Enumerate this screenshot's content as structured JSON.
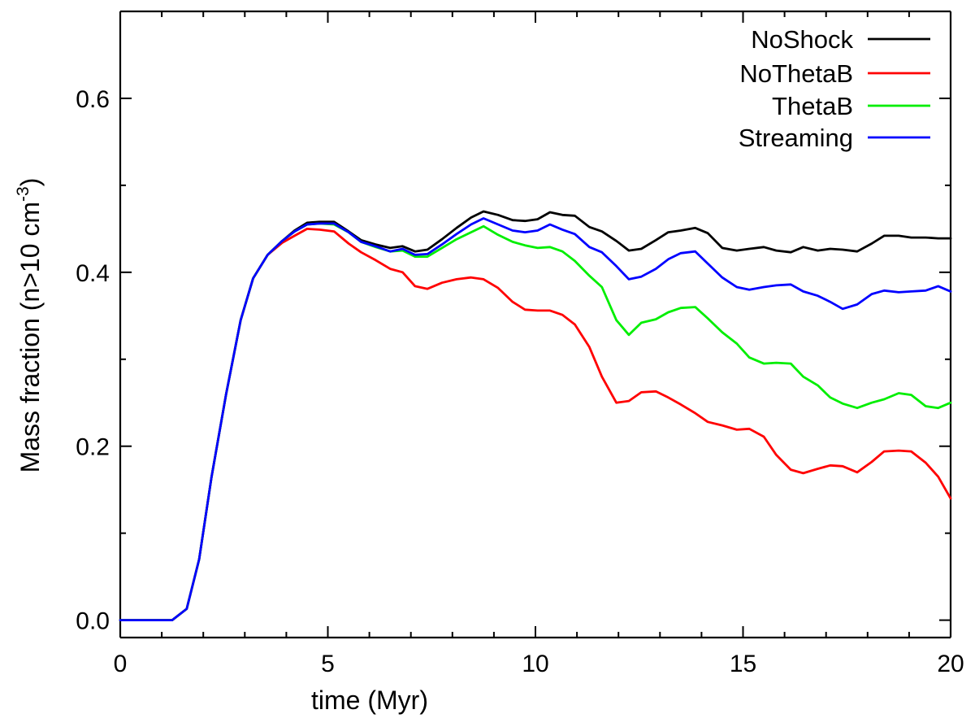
{
  "chart_data": {
    "type": "line",
    "title": "",
    "xlabel": "time (Myr)",
    "ylabel": {
      "prefix": "Mass fraction (n>10 cm",
      "superscript": "-3",
      "suffix": ")"
    },
    "xlim": [
      0,
      20
    ],
    "ylim": [
      -0.02,
      0.7
    ],
    "xticks": [
      0,
      5,
      10,
      15,
      20
    ],
    "xtick_labels": [
      "0",
      "5",
      "10",
      "15",
      "20"
    ],
    "yticks": [
      0.0,
      0.2,
      0.4,
      0.6
    ],
    "ytick_labels": [
      "0.0",
      "0.2",
      "0.4",
      "0.6"
    ],
    "x_minor_step": 1,
    "y_minor_step": 0.1,
    "legend_position": "top-right",
    "series": [
      {
        "name": "NoShock",
        "color": "#000000",
        "x": [
          0,
          0.5,
          1,
          1.25,
          1.6,
          1.9,
          2.2,
          2.55,
          2.9,
          3.2,
          3.55,
          3.9,
          4.2,
          4.5,
          4.8,
          5.15,
          5.5,
          5.8,
          6.15,
          6.5,
          6.8,
          7.1,
          7.4,
          7.75,
          8.1,
          8.45,
          8.75,
          9.1,
          9.45,
          9.75,
          10.05,
          10.35,
          10.65,
          10.95,
          11.3,
          11.6,
          11.95,
          12.25,
          12.55,
          12.9,
          13.2,
          13.5,
          13.85,
          14.15,
          14.5,
          14.85,
          15.15,
          15.5,
          15.8,
          16.15,
          16.45,
          16.8,
          17.1,
          17.4,
          17.75,
          18.1,
          18.4,
          18.75,
          19.05,
          19.4,
          19.7,
          20
        ],
        "values": [
          0,
          0,
          0,
          0,
          0.013,
          0.07,
          0.165,
          0.26,
          0.345,
          0.393,
          0.42,
          0.436,
          0.448,
          0.457,
          0.458,
          0.458,
          0.447,
          0.437,
          0.432,
          0.428,
          0.43,
          0.424,
          0.426,
          0.438,
          0.451,
          0.463,
          0.47,
          0.466,
          0.46,
          0.459,
          0.461,
          0.469,
          0.466,
          0.465,
          0.452,
          0.447,
          0.436,
          0.425,
          0.427,
          0.437,
          0.446,
          0.448,
          0.451,
          0.445,
          0.428,
          0.425,
          0.427,
          0.429,
          0.425,
          0.423,
          0.429,
          0.425,
          0.427,
          0.426,
          0.424,
          0.433,
          0.442,
          0.442,
          0.44,
          0.44,
          0.439,
          0.439
        ]
      },
      {
        "name": "NoThetaB",
        "color": "#ff0000",
        "x": [
          0,
          0.5,
          1,
          1.25,
          1.6,
          1.9,
          2.2,
          2.55,
          2.9,
          3.2,
          3.55,
          3.9,
          4.2,
          4.5,
          4.8,
          5.15,
          5.5,
          5.8,
          6.15,
          6.5,
          6.8,
          7.1,
          7.4,
          7.75,
          8.1,
          8.45,
          8.75,
          9.1,
          9.45,
          9.75,
          10.05,
          10.35,
          10.65,
          10.95,
          11.3,
          11.6,
          11.95,
          12.25,
          12.55,
          12.9,
          13.2,
          13.5,
          13.85,
          14.15,
          14.5,
          14.85,
          15.15,
          15.5,
          15.8,
          16.15,
          16.45,
          16.8,
          17.1,
          17.4,
          17.75,
          18.1,
          18.4,
          18.75,
          19.05,
          19.4,
          19.7,
          20
        ],
        "values": [
          0,
          0,
          0,
          0,
          0.013,
          0.07,
          0.165,
          0.26,
          0.345,
          0.393,
          0.42,
          0.434,
          0.442,
          0.45,
          0.449,
          0.447,
          0.433,
          0.423,
          0.414,
          0.404,
          0.4,
          0.384,
          0.381,
          0.388,
          0.392,
          0.394,
          0.392,
          0.382,
          0.366,
          0.357,
          0.356,
          0.356,
          0.351,
          0.34,
          0.314,
          0.28,
          0.25,
          0.252,
          0.262,
          0.263,
          0.256,
          0.248,
          0.238,
          0.228,
          0.224,
          0.219,
          0.22,
          0.211,
          0.19,
          0.173,
          0.169,
          0.174,
          0.178,
          0.177,
          0.17,
          0.182,
          0.194,
          0.195,
          0.194,
          0.181,
          0.165,
          0.14
        ]
      },
      {
        "name": "ThetaB",
        "color": "#00ee00",
        "x": [
          0,
          0.5,
          1,
          1.25,
          1.6,
          1.9,
          2.2,
          2.55,
          2.9,
          3.2,
          3.55,
          3.9,
          4.2,
          4.5,
          4.8,
          5.15,
          5.5,
          5.8,
          6.15,
          6.5,
          6.8,
          7.1,
          7.4,
          7.75,
          8.1,
          8.45,
          8.75,
          9.1,
          9.45,
          9.75,
          10.05,
          10.35,
          10.65,
          10.95,
          11.3,
          11.6,
          11.95,
          12.25,
          12.55,
          12.9,
          13.2,
          13.5,
          13.85,
          14.15,
          14.5,
          14.85,
          15.15,
          15.5,
          15.8,
          16.15,
          16.45,
          16.8,
          17.1,
          17.4,
          17.75,
          18.1,
          18.4,
          18.75,
          19.05,
          19.4,
          19.7,
          20
        ],
        "values": [
          0,
          0,
          0,
          0,
          0.013,
          0.07,
          0.165,
          0.26,
          0.345,
          0.393,
          0.42,
          0.436,
          0.447,
          0.455,
          0.456,
          0.455,
          0.446,
          0.435,
          0.429,
          0.424,
          0.425,
          0.418,
          0.418,
          0.428,
          0.438,
          0.446,
          0.453,
          0.443,
          0.435,
          0.431,
          0.428,
          0.429,
          0.424,
          0.413,
          0.396,
          0.383,
          0.345,
          0.328,
          0.342,
          0.346,
          0.354,
          0.359,
          0.36,
          0.347,
          0.331,
          0.318,
          0.302,
          0.295,
          0.296,
          0.295,
          0.28,
          0.27,
          0.256,
          0.249,
          0.244,
          0.25,
          0.254,
          0.261,
          0.259,
          0.246,
          0.244,
          0.25
        ]
      },
      {
        "name": "Streaming",
        "color": "#0000ff",
        "x": [
          0,
          0.5,
          1,
          1.25,
          1.6,
          1.9,
          2.2,
          2.55,
          2.9,
          3.2,
          3.55,
          3.9,
          4.2,
          4.5,
          4.8,
          5.15,
          5.5,
          5.8,
          6.15,
          6.5,
          6.8,
          7.1,
          7.4,
          7.75,
          8.1,
          8.45,
          8.75,
          9.1,
          9.45,
          9.75,
          10.05,
          10.35,
          10.65,
          10.95,
          11.3,
          11.6,
          11.95,
          12.25,
          12.55,
          12.9,
          13.2,
          13.5,
          13.85,
          14.15,
          14.5,
          14.85,
          15.15,
          15.5,
          15.8,
          16.15,
          16.45,
          16.8,
          17.1,
          17.4,
          17.75,
          18.1,
          18.4,
          18.75,
          19.05,
          19.4,
          19.7,
          20
        ],
        "values": [
          0,
          0,
          0,
          0,
          0.013,
          0.07,
          0.165,
          0.26,
          0.345,
          0.393,
          0.42,
          0.436,
          0.447,
          0.455,
          0.456,
          0.456,
          0.446,
          0.435,
          0.43,
          0.424,
          0.427,
          0.42,
          0.421,
          0.432,
          0.444,
          0.455,
          0.462,
          0.455,
          0.448,
          0.446,
          0.448,
          0.455,
          0.449,
          0.444,
          0.429,
          0.423,
          0.407,
          0.392,
          0.395,
          0.404,
          0.415,
          0.422,
          0.424,
          0.41,
          0.394,
          0.383,
          0.38,
          0.383,
          0.385,
          0.386,
          0.378,
          0.373,
          0.366,
          0.358,
          0.363,
          0.375,
          0.379,
          0.377,
          0.378,
          0.379,
          0.384,
          0.378
        ]
      }
    ]
  }
}
